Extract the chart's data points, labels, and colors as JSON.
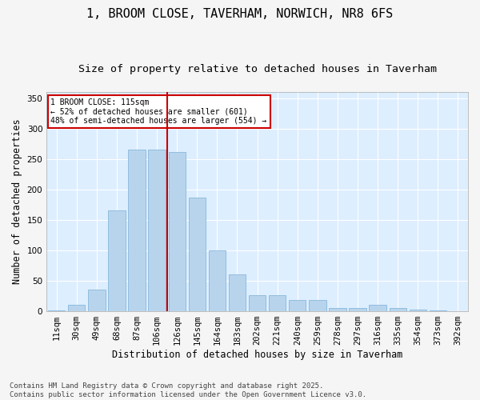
{
  "title_line1": "1, BROOM CLOSE, TAVERHAM, NORWICH, NR8 6FS",
  "title_line2": "Size of property relative to detached houses in Taverham",
  "xlabel": "Distribution of detached houses by size in Taverham",
  "ylabel": "Number of detached properties",
  "bar_color": "#b8d4ed",
  "bar_edge_color": "#7aafd4",
  "background_color": "#ddeeff",
  "grid_color": "#ffffff",
  "vline_color": "#cc0000",
  "annotation_text": "1 BROOM CLOSE: 115sqm\n← 52% of detached houses are smaller (601)\n48% of semi-detached houses are larger (554) →",
  "annotation_box_color": "#cc0000",
  "categories": [
    "11sqm",
    "30sqm",
    "49sqm",
    "68sqm",
    "87sqm",
    "106sqm",
    "126sqm",
    "145sqm",
    "164sqm",
    "183sqm",
    "202sqm",
    "221sqm",
    "240sqm",
    "259sqm",
    "278sqm",
    "297sqm",
    "316sqm",
    "335sqm",
    "354sqm",
    "373sqm",
    "392sqm"
  ],
  "values": [
    2,
    10,
    35,
    165,
    265,
    265,
    262,
    187,
    100,
    61,
    26,
    26,
    18,
    18,
    5,
    5,
    10,
    5,
    3,
    2,
    0
  ],
  "ylim": [
    0,
    360
  ],
  "yticks": [
    0,
    50,
    100,
    150,
    200,
    250,
    300,
    350
  ],
  "footer": "Contains HM Land Registry data © Crown copyright and database right 2025.\nContains public sector information licensed under the Open Government Licence v3.0.",
  "title_fontsize": 11,
  "subtitle_fontsize": 9.5,
  "axis_label_fontsize": 8.5,
  "tick_fontsize": 7.5,
  "footer_fontsize": 6.5,
  "fig_facecolor": "#f5f5f5"
}
